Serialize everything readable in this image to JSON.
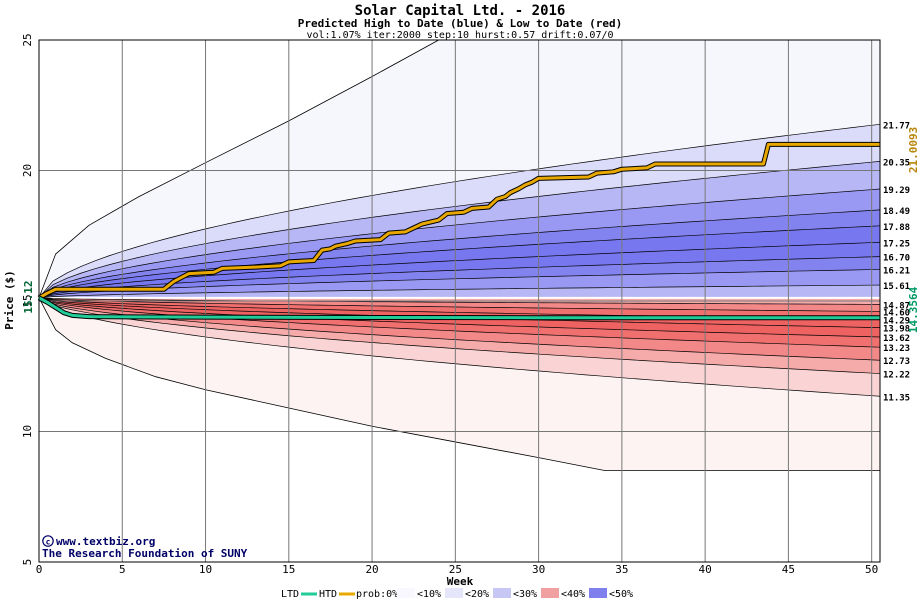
{
  "chart_data": {
    "type": "area",
    "title": "Solar Capital Ltd. - 2016",
    "subtitle": "Predicted High to Date (blue) &  Low to Date (red)",
    "params": "vol:1.07% iter:2000 step:10 hurst:0.57 drift:0.07/0",
    "xlabel": "Week",
    "ylabel": "Price ($)",
    "xlim": [
      0,
      50.5
    ],
    "ylim": [
      5,
      25
    ],
    "x_ticks": [
      0,
      5,
      10,
      15,
      20,
      25,
      30,
      35,
      40,
      45,
      50
    ],
    "y_ticks": [
      5,
      10,
      15,
      20,
      25
    ],
    "grid": true,
    "start_price": 15.12,
    "start_price_label": "15.12",
    "high_quantiles_at_end": [
      {
        "label": "21.77",
        "value": 21.77
      },
      {
        "label": "20.35",
        "value": 20.35
      },
      {
        "label": "19.29",
        "value": 19.29
      },
      {
        "label": "18.49",
        "value": 18.49
      },
      {
        "label": "17.88",
        "value": 17.88
      },
      {
        "label": "17.25",
        "value": 17.25
      },
      {
        "label": "16.70",
        "value": 16.7
      },
      {
        "label": "16.21",
        "value": 16.21
      },
      {
        "label": "15.61",
        "value": 15.61
      }
    ],
    "low_quantiles_at_end": [
      {
        "label": "14.87",
        "value": 14.87
      },
      {
        "label": "14.60",
        "value": 14.6
      },
      {
        "label": "14.29",
        "value": 14.29
      },
      {
        "label": "13.98",
        "value": 13.98
      },
      {
        "label": "13.62",
        "value": 13.62
      },
      {
        "label": "13.23",
        "value": 13.23
      },
      {
        "label": "12.73",
        "value": 12.73
      },
      {
        "label": "12.22",
        "value": 12.22
      },
      {
        "label": "11.35",
        "value": 11.35
      }
    ],
    "max_envelope": {
      "x": [
        0,
        1,
        3,
        6,
        10,
        15,
        20,
        24
      ],
      "y": [
        15.12,
        16.8,
        17.9,
        19.0,
        20.3,
        21.9,
        23.6,
        25.0
      ]
    },
    "min_envelope": {
      "x": [
        0,
        1,
        2,
        4,
        7,
        10,
        15,
        20,
        25,
        30,
        34,
        50.5
      ],
      "y": [
        15.12,
        13.9,
        13.4,
        12.8,
        12.1,
        11.6,
        10.9,
        10.2,
        9.6,
        9.0,
        8.5,
        8.5
      ]
    },
    "htd_series": {
      "name": "HTD",
      "final_label": "21.0093",
      "x": [
        0,
        0.5,
        1,
        7.5,
        7.8,
        8.1,
        8.4,
        8.7,
        9,
        10.5,
        11,
        13,
        14.5,
        15,
        16.5,
        17,
        17.5,
        17.8,
        18.5,
        19,
        20.5,
        21,
        22,
        22.5,
        23,
        24,
        24.5,
        25.5,
        26,
        27,
        27.5,
        28,
        28.3,
        28.8,
        29.2,
        29.6,
        30,
        33,
        33.5,
        34.5,
        35,
        36.5,
        37,
        43.5,
        43.8,
        50.5
      ],
      "y": [
        15.12,
        15.3,
        15.45,
        15.45,
        15.6,
        15.75,
        15.85,
        15.95,
        16.05,
        16.1,
        16.25,
        16.3,
        16.35,
        16.5,
        16.55,
        16.95,
        17.0,
        17.1,
        17.2,
        17.3,
        17.35,
        17.6,
        17.65,
        17.8,
        17.95,
        18.1,
        18.35,
        18.4,
        18.55,
        18.6,
        18.9,
        19.0,
        19.15,
        19.3,
        19.45,
        19.55,
        19.7,
        19.75,
        19.9,
        19.95,
        20.05,
        20.1,
        20.25,
        20.25,
        21.0,
        21.0
      ]
    },
    "ltd_series": {
      "name": "LTD",
      "final_label": "14.3564",
      "x": [
        0,
        0.5,
        1,
        1.5,
        2,
        3,
        10,
        20,
        30,
        40,
        50.5
      ],
      "y": [
        15.12,
        14.95,
        14.75,
        14.55,
        14.45,
        14.4,
        14.38,
        14.37,
        14.36,
        14.36,
        14.3564
      ]
    },
    "colors": {
      "blue_dark": "#7070ee",
      "red_dark": "#ee5a5a",
      "htd": "#e8a800",
      "ltd": "#22cc99",
      "grid": "#777777",
      "label_htd": "#b8860b",
      "label_ltd": "#009966"
    }
  },
  "watermark": {
    "line1": "www.textbiz.org",
    "line2": "The Research Foundation of SUNY"
  },
  "legend": {
    "ltd": "LTD",
    "htd": "HTD",
    "prob_prefix": "prob:0%",
    "items": [
      {
        "label": "<10%",
        "color": "#f8f8fe"
      },
      {
        "label": "<20%",
        "color": "#e6e6fb"
      },
      {
        "label": "<30%",
        "color": "#c7c7f6"
      },
      {
        "label": "<40%",
        "color": "#f0a0a0"
      },
      {
        "label": "<50%",
        "color": "#7f7fee"
      }
    ]
  }
}
